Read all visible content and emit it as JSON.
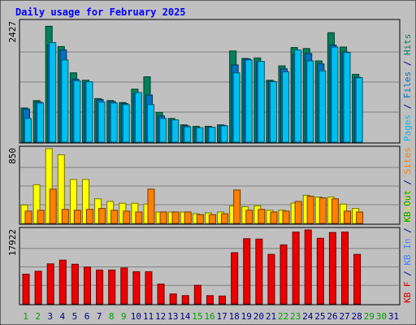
{
  "chart_data": {
    "type": "bar",
    "title": "Daily usage for February 2025",
    "categories": [
      "1",
      "2",
      "3",
      "4",
      "5",
      "6",
      "7",
      "8",
      "9",
      "10",
      "11",
      "12",
      "13",
      "14",
      "15",
      "16",
      "17",
      "18",
      "19",
      "20",
      "21",
      "22",
      "23",
      "24",
      "25",
      "26",
      "27",
      "28",
      "29",
      "30",
      "31"
    ],
    "weekend_days": [
      "1",
      "2",
      "8",
      "9",
      "15",
      "16",
      "22",
      "23",
      "29",
      "30"
    ],
    "panels": [
      {
        "id": "top",
        "max_label": "2427",
        "ylim": [
          0,
          2427
        ],
        "legend": [
          {
            "text": "Pages",
            "color": "#00C0F0"
          },
          {
            "text": " / ",
            "color": "#000080"
          },
          {
            "text": "Files",
            "color": "#0070C0"
          },
          {
            "text": " / ",
            "color": "#000080"
          },
          {
            "text": "Hits",
            "color": "#00805C"
          }
        ],
        "series": [
          {
            "name": "Hits",
            "color": "#00805C",
            "values": [
              690,
              840,
              2340,
              1930,
              1400,
              1250,
              880,
              840,
              800,
              1070,
              1320,
              600,
              480,
              350,
              320,
              320,
              350,
              1840,
              1690,
              1700,
              1250,
              1540,
              1910,
              1890,
              1640,
              2210,
              1920,
              1370,
              0,
              0,
              0
            ]
          },
          {
            "name": "Files",
            "color": "#0070C0",
            "values": [
              670,
              810,
              1960,
              1860,
              1270,
              1210,
              860,
              820,
              780,
              980,
              950,
              530,
              450,
              330,
              290,
              300,
              340,
              1560,
              1680,
              1620,
              1230,
              1480,
              1770,
              1790,
              1580,
              1960,
              1820,
              1310,
              0,
              0,
              0
            ]
          },
          {
            "name": "Pages",
            "color": "#00C0F0",
            "values": [
              480,
              790,
              2010,
              1660,
              1240,
              1220,
              810,
              790,
              760,
              1000,
              760,
              480,
              450,
              310,
              290,
              300,
              330,
              1400,
              1660,
              1630,
              1220,
              1420,
              1860,
              1640,
              1440,
              1920,
              1810,
              1300,
              0,
              0,
              0
            ]
          }
        ]
      },
      {
        "id": "middle",
        "max_label": "850",
        "ylim": [
          0,
          850
        ],
        "legend": [
          {
            "text": "Visits",
            "color": "#E8E800"
          },
          {
            "text": " / ",
            "color": "#000080"
          },
          {
            "text": "Sites",
            "color": "#FF8000"
          }
        ],
        "series": [
          {
            "name": "Visits",
            "color": "#FFFF00",
            "values": [
              210,
              440,
              850,
              780,
              500,
              500,
              280,
              250,
              230,
              230,
              220,
              130,
              130,
              130,
              110,
              120,
              130,
              200,
              190,
              200,
              150,
              150,
              230,
              320,
              300,
              300,
              220,
              170,
              0,
              0,
              0
            ]
          },
          {
            "name": "Sites",
            "color": "#FF8000",
            "values": [
              140,
              150,
              390,
              160,
              150,
              160,
              170,
              150,
              140,
              130,
              390,
              130,
              130,
              130,
              100,
              100,
              110,
              380,
              150,
              160,
              130,
              140,
              250,
              310,
              290,
              280,
              140,
              130,
              0,
              0,
              0
            ]
          }
        ]
      },
      {
        "id": "bottom",
        "max_label": "17922",
        "ylim": [
          0,
          17922
        ],
        "legend": [
          {
            "text": "KB F",
            "color": "#D00000"
          },
          {
            "text": " / ",
            "color": "#000080"
          },
          {
            "text": "KB In",
            "color": "#4080FF"
          },
          {
            "text": " / ",
            "color": "#000080"
          },
          {
            "text": "KB Out",
            "color": "#00A000"
          }
        ],
        "series": [
          {
            "name": "KB F",
            "color": "#EE0000",
            "values": [
              7200,
              7900,
              9700,
              10600,
              9600,
              8900,
              8200,
              8200,
              8700,
              7800,
              7800,
              4800,
              2400,
              2000,
              4500,
              2000,
              1900,
              12400,
              15800,
              15700,
              12000,
              14300,
              17400,
              18200,
              15900,
              17300,
              17400,
              12000,
              0,
              0,
              0
            ]
          }
        ]
      }
    ]
  },
  "colors": {
    "background": "#C0C0C0",
    "plot": "#C0C0C0",
    "title": "#0000FF",
    "grid": "#808080",
    "axis_label": "#000000",
    "weekday_label": "#000080",
    "weekend_label": "#00A000"
  }
}
